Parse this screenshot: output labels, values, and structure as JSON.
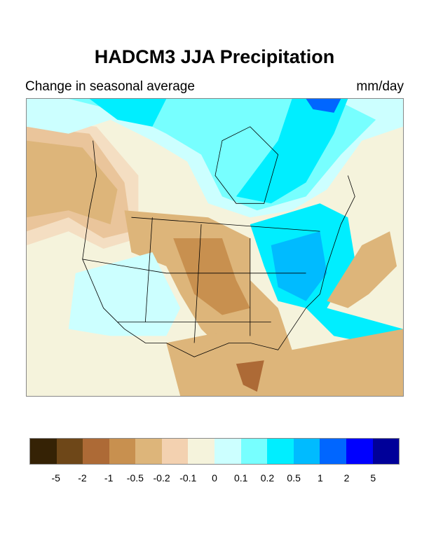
{
  "title": "HADCM3 JJA Precipitation",
  "subtitle_left": "Change in seasonal average",
  "subtitle_right": "mm/day",
  "colorbar": {
    "colors": [
      "#352205",
      "#6e4718",
      "#ad6a36",
      "#c8904f",
      "#ddb57a",
      "#f3d1b0",
      "#f5f3dc",
      "#ccffff",
      "#77ffff",
      "#00eeff",
      "#00bbff",
      "#0066ff",
      "#0000ff",
      "#000099"
    ],
    "labels": [
      "-5",
      "-2",
      "-1",
      "-0.5",
      "-0.2",
      "-0.1",
      "0",
      "0.1",
      "0.2",
      "0.5",
      "1",
      "2",
      "5"
    ]
  }
}
